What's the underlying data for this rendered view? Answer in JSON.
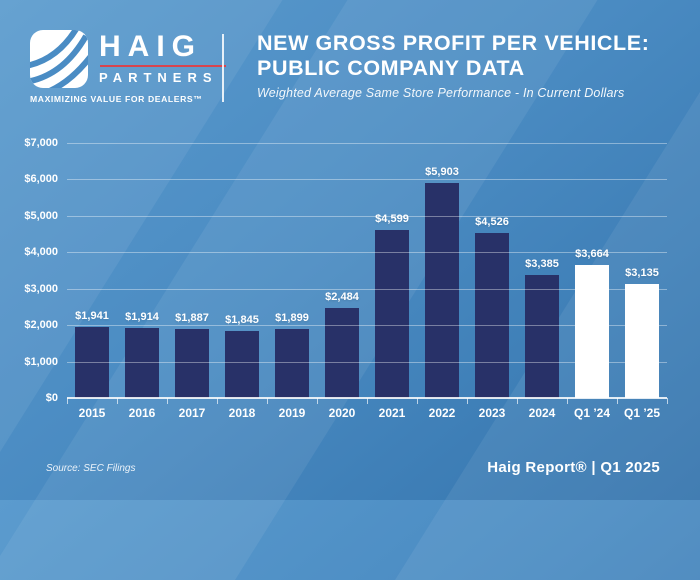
{
  "header": {
    "logo": {
      "brand": "HAIG",
      "brand_sub": "PARTNERS",
      "tagline": "MAXIMIZING VALUE FOR DEALERS™",
      "accent_color": "#d8444e"
    },
    "title_line1": "NEW GROSS PROFIT PER VEHICLE:",
    "title_line2": "PUBLIC COMPANY DATA",
    "subtitle": "Weighted Average Same Store Performance - In Current Dollars"
  },
  "chart_data": {
    "type": "bar",
    "title": "New Gross Profit Per Vehicle: Public Company Data",
    "subtitle": "Weighted Average Same Store Performance - In Current Dollars",
    "categories": [
      "2015",
      "2016",
      "2017",
      "2018",
      "2019",
      "2020",
      "2021",
      "2022",
      "2023",
      "2024",
      "Q1 ’24",
      "Q1 ’25"
    ],
    "values": [
      1941,
      1914,
      1887,
      1845,
      1899,
      2484,
      4599,
      5903,
      4526,
      3385,
      3664,
      3135
    ],
    "value_labels": [
      "$1,941",
      "$1,914",
      "$1,887",
      "$1,845",
      "$1,899",
      "$2,484",
      "$4,599",
      "$5,903",
      "$4,526",
      "$3,385",
      "$3,664",
      "$3,135"
    ],
    "bar_colors": [
      "#283168",
      "#283168",
      "#283168",
      "#283168",
      "#283168",
      "#283168",
      "#283168",
      "#283168",
      "#283168",
      "#283168",
      "#ffffff",
      "#ffffff"
    ],
    "ylim": [
      0,
      7000
    ],
    "ytick_step": 1000,
    "ytick_labels": [
      "$0",
      "$1,000",
      "$2,000",
      "$3,000",
      "$4,000",
      "$5,000",
      "$6,000",
      "$7,000"
    ],
    "grid": true,
    "legend": false,
    "xlabel": "",
    "ylabel": ""
  },
  "footer": {
    "source": "Source: SEC Filings",
    "report": "Haig Report® | Q1 2025"
  },
  "colors": {
    "background_top": "#5b9bce",
    "background_bottom": "#3474ad",
    "bar_navy": "#283168",
    "bar_white": "#ffffff",
    "accent_red": "#d8444e",
    "text": "#ffffff"
  }
}
